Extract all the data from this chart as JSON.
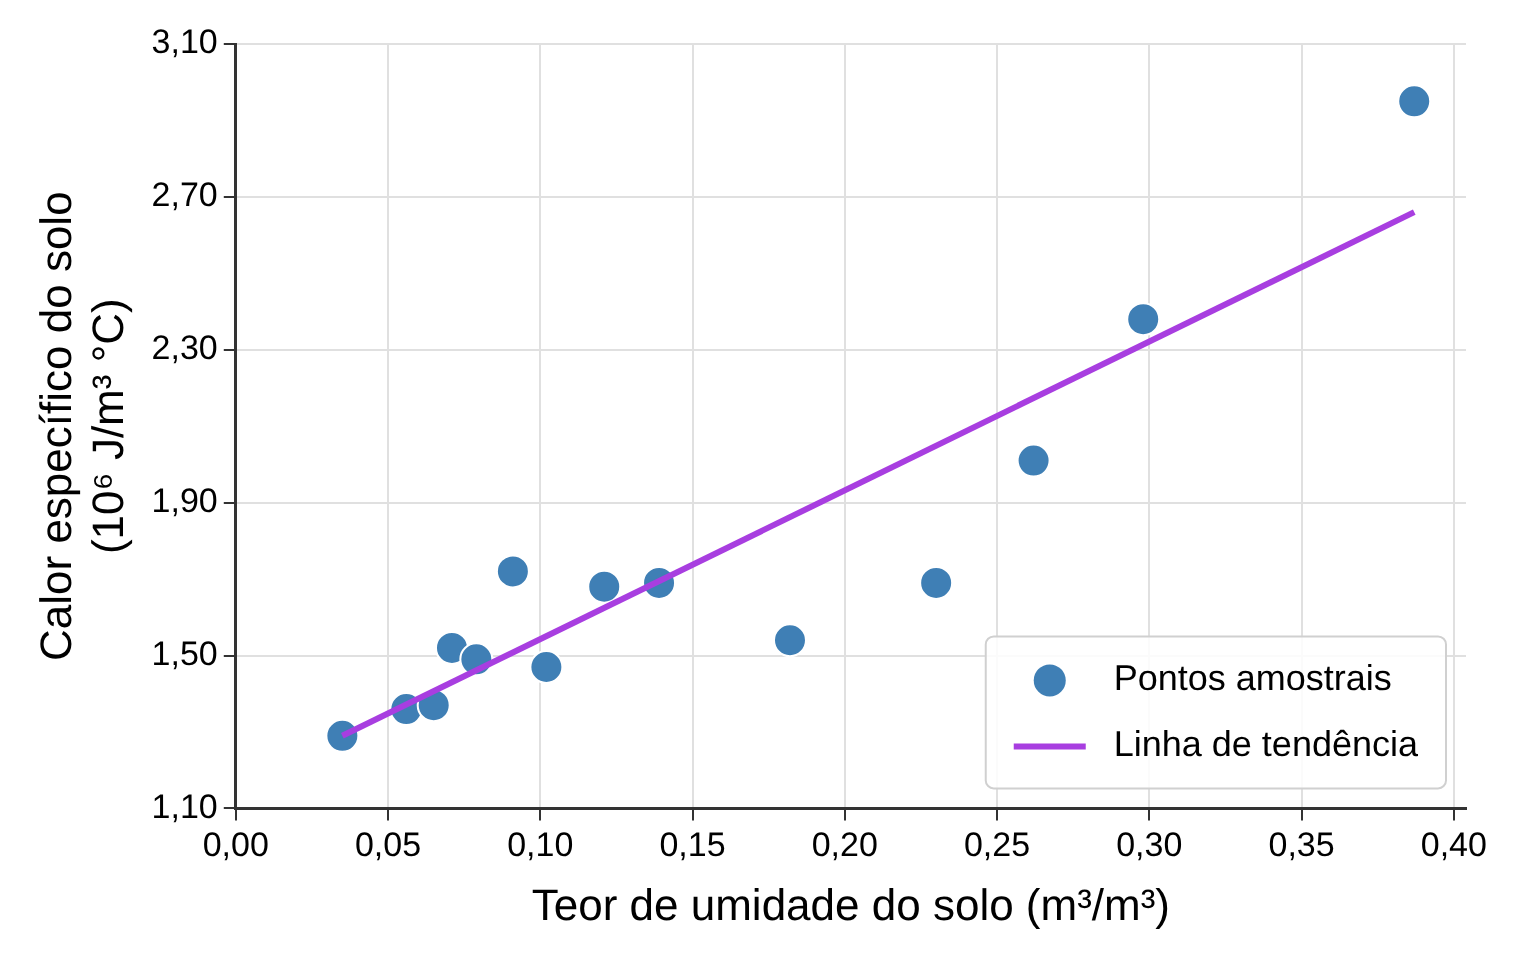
{
  "chart_data": {
    "type": "scatter",
    "xlabel": "Teor de umidade do solo (m³/m³)",
    "ylabel": "Calor específico do solo\n(10⁶ J/m³ °C)",
    "xlim": [
      0,
      0.404
    ],
    "ylim": [
      1.1,
      3.1
    ],
    "xticks": [
      {
        "value": 0,
        "label": "0,00"
      },
      {
        "value": 0.05,
        "label": "0,05"
      },
      {
        "value": 0.1,
        "label": "0,10"
      },
      {
        "value": 0.15,
        "label": "0,15"
      },
      {
        "value": 0.2,
        "label": "0,20"
      },
      {
        "value": 0.25,
        "label": "0,25"
      },
      {
        "value": 0.3,
        "label": "0,30"
      },
      {
        "value": 0.35,
        "label": "0,35"
      },
      {
        "value": 0.4,
        "label": "0,40"
      }
    ],
    "yticks": [
      {
        "value": 1.1,
        "label": "1,10"
      },
      {
        "value": 1.5,
        "label": "1,50"
      },
      {
        "value": 1.9,
        "label": "1,90"
      },
      {
        "value": 2.3,
        "label": "2,30"
      },
      {
        "value": 2.7,
        "label": "2,70"
      },
      {
        "value": 3.1,
        "label": "3,10"
      }
    ],
    "grid": true,
    "legend": "bottom right",
    "series": [
      {
        "name": "Pontos amostrais",
        "marker": "circle",
        "color": "#3f7fb5",
        "x": [
          0.035,
          0.056,
          0.065,
          0.071,
          0.079,
          0.091,
          0.102,
          0.121,
          0.139,
          0.182,
          0.23,
          0.262,
          0.298,
          0.387
        ],
        "values": [
          1.29,
          1.36,
          1.37,
          1.52,
          1.49,
          1.72,
          1.47,
          1.68,
          1.69,
          1.54,
          1.69,
          2.01,
          2.38,
          2.95
        ]
      },
      {
        "name": "Linha de tendência",
        "type": "line",
        "marker": "none",
        "line_style": "solid",
        "color": "#a83ee0",
        "x": [
          0.035,
          0.387
        ],
        "values": [
          1.29,
          2.66
        ]
      }
    ]
  }
}
